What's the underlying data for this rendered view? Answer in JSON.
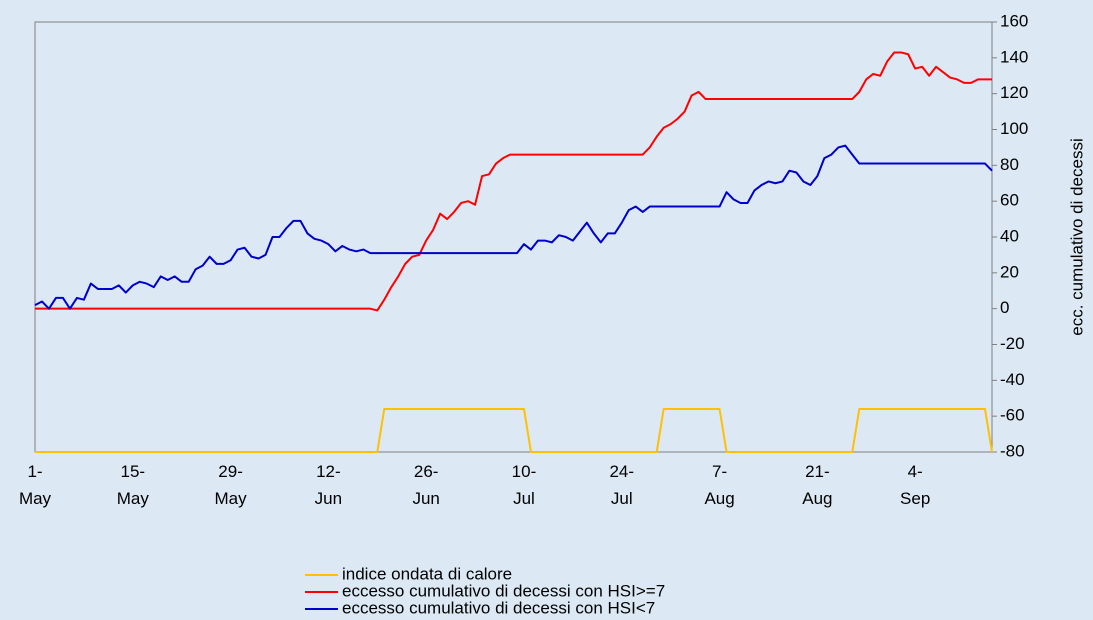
{
  "chart_data": {
    "type": "line",
    "y_label": "ecc. cumulativo di decessi",
    "categories": [
      "1-\nMay",
      null,
      null,
      null,
      null,
      null,
      null,
      null,
      null,
      null,
      null,
      null,
      null,
      null,
      "15-\nMay",
      null,
      null,
      null,
      null,
      null,
      null,
      null,
      null,
      null,
      null,
      null,
      null,
      null,
      "29-\nMay",
      null,
      null,
      null,
      null,
      null,
      null,
      null,
      null,
      null,
      null,
      null,
      null,
      null,
      "12-\nJun",
      null,
      null,
      null,
      null,
      null,
      null,
      null,
      null,
      null,
      null,
      null,
      null,
      null,
      "26-\nJun",
      null,
      null,
      null,
      null,
      null,
      null,
      null,
      null,
      null,
      null,
      null,
      null,
      null,
      "10-\nJul",
      null,
      null,
      null,
      null,
      null,
      null,
      null,
      null,
      null,
      null,
      null,
      null,
      null,
      "24-\nJul",
      null,
      null,
      null,
      null,
      null,
      null,
      null,
      null,
      null,
      null,
      null,
      null,
      null,
      "7-\nAug",
      null,
      null,
      null,
      null,
      null,
      null,
      null,
      null,
      null,
      null,
      null,
      null,
      null,
      "21-\nAug",
      null,
      null,
      null,
      null,
      null,
      null,
      null,
      null,
      null,
      null,
      null,
      null,
      null,
      "4-\nSep",
      null,
      null,
      null,
      null,
      null,
      null,
      null,
      null,
      null,
      null,
      null
    ],
    "series": [
      {
        "name": "indice ondata di calore",
        "color": "#ffc000",
        "values": [
          -80,
          -80,
          -80,
          -80,
          -80,
          -80,
          -80,
          -80,
          -80,
          -80,
          -80,
          -80,
          -80,
          -80,
          -80,
          -80,
          -80,
          -80,
          -80,
          -80,
          -80,
          -80,
          -80,
          -80,
          -80,
          -80,
          -80,
          -80,
          -80,
          -80,
          -80,
          -80,
          -80,
          -80,
          -80,
          -80,
          -80,
          -80,
          -80,
          -80,
          -80,
          -80,
          -80,
          -80,
          -80,
          -80,
          -80,
          -80,
          -80,
          -80,
          -56,
          -56,
          -56,
          -56,
          -56,
          -56,
          -56,
          -56,
          -56,
          -56,
          -56,
          -56,
          -56,
          -56,
          -56,
          -56,
          -56,
          -56,
          -56,
          -56,
          -56,
          -80,
          -80,
          -80,
          -80,
          -80,
          -80,
          -80,
          -80,
          -80,
          -80,
          -80,
          -80,
          -80,
          -80,
          -80,
          -80,
          -80,
          -80,
          -80,
          -56,
          -56,
          -56,
          -56,
          -56,
          -56,
          -56,
          -56,
          -56,
          -80,
          -80,
          -80,
          -80,
          -80,
          -80,
          -80,
          -80,
          -80,
          -80,
          -80,
          -80,
          -80,
          -80,
          -80,
          -80,
          -80,
          -80,
          -80,
          -56,
          -56,
          -56,
          -56,
          -56,
          -56,
          -56,
          -56,
          -56,
          -56,
          -56,
          -56,
          -56,
          -56,
          -56,
          -56,
          -56,
          -56,
          -56,
          -80
        ]
      },
      {
        "name": "eccesso cumulativo di decessi con HSI>=7",
        "color": "#ff0000",
        "values": [
          0,
          0,
          0,
          0,
          0,
          0,
          0,
          0,
          0,
          0,
          0,
          0,
          0,
          0,
          0,
          0,
          0,
          0,
          0,
          0,
          0,
          0,
          0,
          0,
          0,
          0,
          0,
          0,
          0,
          0,
          0,
          0,
          0,
          0,
          0,
          0,
          0,
          0,
          0,
          0,
          0,
          0,
          0,
          0,
          0,
          0,
          0,
          0,
          0,
          -1,
          5,
          12,
          18,
          25,
          29,
          30,
          38,
          44,
          53,
          50,
          54,
          59,
          60,
          58,
          74,
          75,
          81,
          84,
          86,
          86,
          86,
          86,
          86,
          86,
          86,
          86,
          86,
          86,
          86,
          86,
          86,
          86,
          86,
          86,
          86,
          86,
          86,
          86,
          90,
          96,
          101,
          103,
          106,
          110,
          119,
          121,
          117,
          117,
          117,
          117,
          117,
          117,
          117,
          117,
          117,
          117,
          117,
          117,
          117,
          117,
          117,
          117,
          117,
          117,
          117,
          117,
          117,
          117,
          121,
          128,
          131,
          130,
          138,
          143,
          143,
          142,
          134,
          135,
          130,
          135,
          132,
          129,
          128,
          126,
          126,
          128,
          128,
          128
        ]
      },
      {
        "name": "eccesso cumulativo di decessi con HSI<7",
        "color": "#0000cc",
        "values": [
          2,
          4,
          0,
          6,
          6,
          0,
          6,
          5,
          14,
          11,
          11,
          11,
          13,
          9,
          13,
          15,
          14,
          12,
          18,
          16,
          18,
          15,
          15,
          22,
          24,
          29,
          25,
          25,
          27,
          33,
          34,
          29,
          28,
          30,
          40,
          40,
          45,
          49,
          49,
          42,
          39,
          38,
          36,
          32,
          35,
          33,
          32,
          33,
          31,
          31,
          31,
          31,
          31,
          31,
          31,
          31,
          31,
          31,
          31,
          31,
          31,
          31,
          31,
          31,
          31,
          31,
          31,
          31,
          31,
          31,
          36,
          33,
          38,
          38,
          37,
          41,
          40,
          38,
          43,
          48,
          42,
          37,
          42,
          42,
          48,
          55,
          57,
          54,
          57,
          57,
          57,
          57,
          57,
          57,
          57,
          57,
          57,
          57,
          57,
          65,
          61,
          59,
          59,
          66,
          69,
          71,
          70,
          71,
          77,
          76,
          71,
          69,
          74,
          84,
          86,
          90,
          91,
          86,
          81,
          81,
          81,
          81,
          81,
          81,
          81,
          81,
          81,
          81,
          81,
          81,
          81,
          81,
          81,
          81,
          81,
          81,
          81,
          77
        ]
      }
    ],
    "ylim": [
      -80,
      160
    ],
    "yticks": [
      -80,
      -60,
      -40,
      -20,
      0,
      20,
      40,
      60,
      80,
      100,
      120,
      140,
      160
    ],
    "grid": false,
    "legend": "bottom"
  }
}
